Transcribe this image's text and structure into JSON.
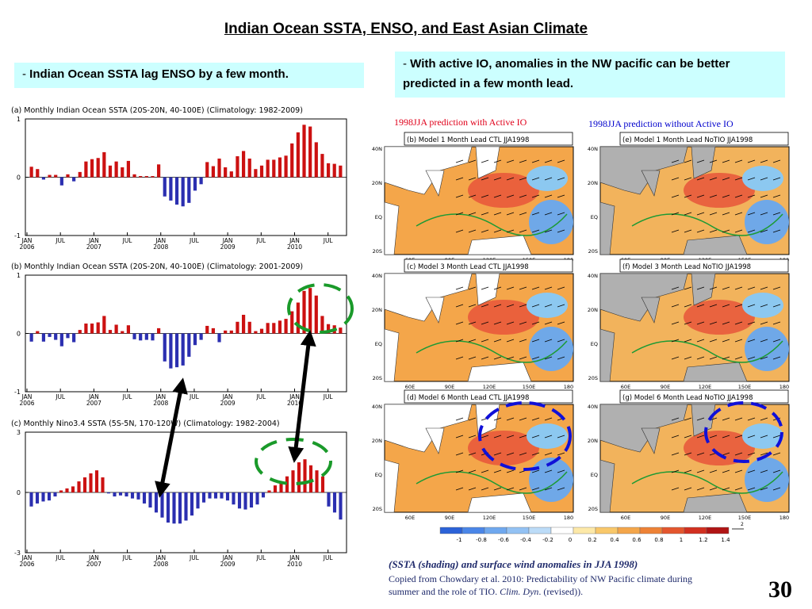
{
  "title": "Indian Ocean SSTA, ENSO, and East Asian Climate",
  "note_left": {
    "dash": "-",
    "text": "Indian Ocean SSTA lag ENSO by a few month."
  },
  "note_right": {
    "dash": "-",
    "text": "With active IO, anomalies in the NW pacific can be better predicted in a few month lead."
  },
  "chart_data": [
    {
      "type": "bar",
      "title": "(a)  Monthly Indian Ocean SSTA (20S-20N, 40-100E) (Climatology: 1982-2009)",
      "ylim": [
        -1,
        1
      ],
      "yticks": [
        "1",
        "0",
        "-1"
      ],
      "xticks": [
        [
          "JAN",
          "2006"
        ],
        [
          "JUL",
          ""
        ],
        [
          "JAN",
          "2007"
        ],
        [
          "JUL",
          ""
        ],
        [
          "JAN",
          "2008"
        ],
        [
          "JUL",
          ""
        ],
        [
          "JAN",
          "2009"
        ],
        [
          "JUL",
          ""
        ],
        [
          "JAN",
          "2010"
        ],
        [
          "JUL",
          ""
        ]
      ],
      "positive_color": "#cc1111",
      "negative_color": "#2b2fb0",
      "values": [
        0.18,
        0.14,
        -0.04,
        0.04,
        0.04,
        -0.14,
        0.05,
        -0.07,
        0.09,
        0.27,
        0.31,
        0.33,
        0.43,
        0.2,
        0.27,
        0.17,
        0.28,
        0.05,
        0.02,
        0.02,
        0.02,
        0.22,
        -0.33,
        -0.4,
        -0.47,
        -0.5,
        -0.44,
        -0.23,
        -0.12,
        0.26,
        0.19,
        0.32,
        0.17,
        0.1,
        0.36,
        0.45,
        0.32,
        0.14,
        0.2,
        0.3,
        0.3,
        0.34,
        0.37,
        0.58,
        0.77,
        0.9,
        0.87,
        0.6,
        0.4,
        0.24,
        0.23,
        0.2
      ]
    },
    {
      "type": "bar",
      "title": "(b)  Monthly Indian Ocean SSTA (20S-20N, 40-100E) (Climatology: 2001-2009)",
      "ylim": [
        -1,
        1
      ],
      "yticks": [
        "1",
        "0",
        "-1"
      ],
      "xticks": [
        [
          "JAN",
          "2006"
        ],
        [
          "JUL",
          ""
        ],
        [
          "JAN",
          "2007"
        ],
        [
          "JUL",
          ""
        ],
        [
          "JAN",
          "2008"
        ],
        [
          "JUL",
          ""
        ],
        [
          "JAN",
          "2009"
        ],
        [
          "JUL",
          ""
        ],
        [
          "JAN",
          "2010"
        ],
        [
          "JUL",
          ""
        ]
      ],
      "positive_color": "#cc1111",
      "negative_color": "#2b2fb0",
      "values": [
        -0.14,
        0.04,
        -0.14,
        -0.06,
        -0.11,
        -0.22,
        -0.08,
        -0.15,
        0.06,
        0.17,
        0.17,
        0.19,
        0.3,
        0.06,
        0.15,
        0.04,
        0.14,
        -0.1,
        -0.12,
        -0.11,
        -0.12,
        0.09,
        -0.48,
        -0.6,
        -0.58,
        -0.55,
        -0.4,
        -0.2,
        -0.11,
        0.13,
        0.09,
        -0.15,
        0.05,
        0.05,
        0.2,
        0.32,
        0.2,
        0.04,
        0.08,
        0.18,
        0.18,
        0.22,
        0.25,
        0.38,
        0.53,
        0.73,
        0.78,
        0.65,
        0.3,
        0.16,
        0.14,
        0.1
      ]
    },
    {
      "type": "bar",
      "title": "(c)  Monthly Nino3.4 SSTA (5S-5N, 170-120W) (Climatology: 1982-2004)",
      "ylim": [
        -3,
        3
      ],
      "yticks": [
        "3",
        "0",
        "-3"
      ],
      "xticks": [
        [
          "JAN",
          "2006"
        ],
        [
          "JUL",
          ""
        ],
        [
          "JAN",
          "2007"
        ],
        [
          "JUL",
          ""
        ],
        [
          "JAN",
          "2008"
        ],
        [
          "JUL",
          ""
        ],
        [
          "JAN",
          "2009"
        ],
        [
          "JUL",
          ""
        ],
        [
          "JAN",
          "2010"
        ],
        [
          "JUL",
          ""
        ]
      ],
      "positive_color": "#cc1111",
      "negative_color": "#2b2fb0",
      "values": [
        -0.7,
        -0.55,
        -0.45,
        -0.4,
        -0.2,
        0.1,
        0.2,
        0.3,
        0.55,
        0.75,
        0.95,
        1.1,
        0.75,
        -0.05,
        -0.2,
        -0.15,
        -0.2,
        -0.3,
        -0.35,
        -0.55,
        -0.75,
        -1.0,
        -1.25,
        -1.5,
        -1.55,
        -1.55,
        -1.4,
        -1.15,
        -0.8,
        -0.5,
        -0.3,
        -0.3,
        -0.3,
        -0.4,
        -0.6,
        -0.8,
        -0.85,
        -0.75,
        -0.6,
        -0.25,
        0.1,
        0.35,
        0.5,
        0.8,
        1.1,
        1.5,
        1.65,
        1.35,
        1.1,
        0.8,
        -0.7,
        -1.0,
        -1.35
      ]
    }
  ],
  "map_captions": {
    "active": "1998JJA prediction with Active IO",
    "no_active": "1998JJA prediction without Active IO"
  },
  "maps": [
    {
      "label": "(b)  Model 1 Month Lead CTL JJA1998",
      "active": true
    },
    {
      "label": "(e)  Model 1 Month Lead NoTIO JJA1998",
      "active": false
    },
    {
      "label": "(c)  Model 3 Month Lead CTL JJA1998",
      "active": true
    },
    {
      "label": "(f)  Model 3 Month Lead NoTIO JJA1998",
      "active": false
    },
    {
      "label": "(d)  Model 6 Month Lead CTL JJA1998",
      "active": true
    },
    {
      "label": "(g)  Model 6 Month Lead NoTIO JJA1998",
      "active": false
    }
  ],
  "map_axes": {
    "lat": [
      "40N",
      "20N",
      "EQ",
      "20S"
    ],
    "lon": [
      "60E",
      "90E",
      "120E",
      "150E",
      "180"
    ]
  },
  "colorbar": {
    "ticks": [
      "-1",
      "-0.8",
      "-0.6",
      "-0.4",
      "-0.2",
      "0",
      "0.2",
      "0.4",
      "0.6",
      "0.8",
      "1",
      "1.2",
      "1.4"
    ],
    "unit_arrow": "2"
  },
  "reference": {
    "head": "(SSTA (shading) and surface wind anomalies in JJA 1998)",
    "body_1": "Copied from Chowdary et al. 2010: Predictability of NW Pacific climate during",
    "body_2_a": "summer and the role of TIO. ",
    "body_2_b": "Clim. Dyn",
    "body_2_c": ". (revised))."
  },
  "page_number": "30"
}
